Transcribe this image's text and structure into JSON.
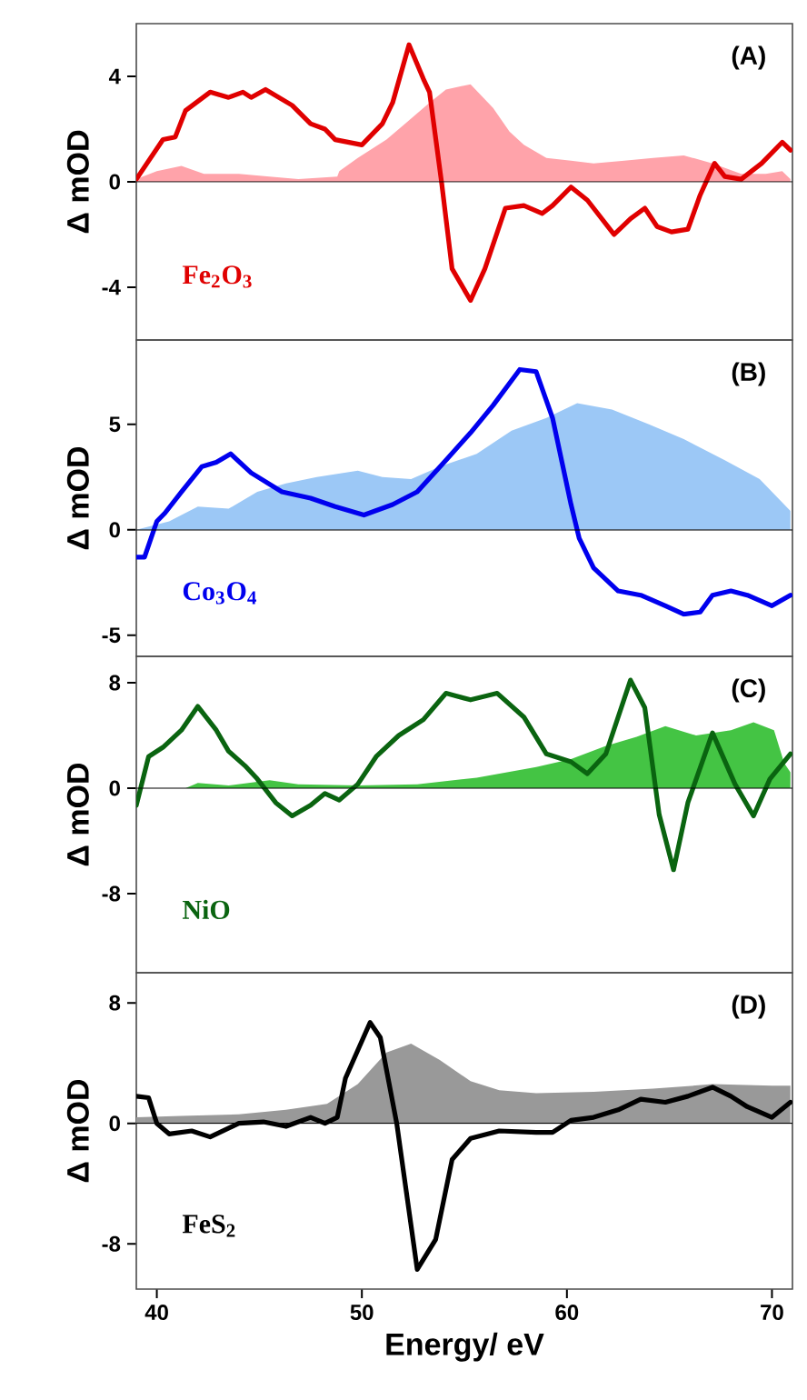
{
  "chart_data": [
    {
      "type": "line",
      "ylabel": "Δ mOD",
      "xlim": [
        39,
        71
      ],
      "ylim": [
        -6,
        6
      ],
      "yticks": [
        -4,
        0,
        4
      ],
      "tick_labels": "y",
      "annotations": [
        "(A)"
      ],
      "ref_lines": [
        {
          "axis": "y",
          "value": 0,
          "color": "#000000"
        }
      ],
      "series": [
        {
          "type": "area",
          "color": "#ffa3aa",
          "x": [
            39,
            40,
            41.2,
            42.3,
            44.0,
            45.5,
            46.9,
            48.8,
            48.9,
            49.8,
            51.2,
            52.1,
            53.3,
            54.1,
            55.3,
            56.4,
            57.2,
            57.9,
            59.0,
            60.2,
            61.3,
            62.8,
            64.2,
            65.7,
            67.1,
            68.5,
            69.7,
            70.5,
            70.9
          ],
          "values": [
            0.1,
            0.4,
            0.6,
            0.3,
            0.3,
            0.2,
            0.1,
            0.2,
            0.4,
            0.9,
            1.6,
            2.2,
            3.0,
            3.5,
            3.7,
            2.8,
            1.9,
            1.4,
            0.9,
            0.8,
            0.7,
            0.8,
            0.9,
            1.0,
            0.7,
            0.3,
            0.3,
            0.4,
            0.1
          ]
        },
        {
          "name": "Fe$_{2}$O$_{3}$",
          "color": "#e00000",
          "x": [
            39,
            40.3,
            40.9,
            41.4,
            42.6,
            43.5,
            44.2,
            44.6,
            45.3,
            46.6,
            47.5,
            48.2,
            48.7,
            50.0,
            51.0,
            51.5,
            52.3,
            53.0,
            53.3,
            53.9,
            54.4,
            55.3,
            56.0,
            57.0,
            57.9,
            58.8,
            59.3,
            60.2,
            61.0,
            62.3,
            63.1,
            63.8,
            64.4,
            65.1,
            65.9,
            66.5,
            67.2,
            67.7,
            68.5,
            69.5,
            70.5,
            70.9
          ],
          "values": [
            0.1,
            1.6,
            1.7,
            2.7,
            3.4,
            3.2,
            3.4,
            3.2,
            3.5,
            2.9,
            2.2,
            2.0,
            1.6,
            1.4,
            2.2,
            3.0,
            5.2,
            3.9,
            3.4,
            -0.1,
            -3.3,
            -4.5,
            -3.3,
            -1.0,
            -0.9,
            -1.2,
            -0.9,
            -0.2,
            -0.7,
            -2.0,
            -1.4,
            -1.0,
            -1.7,
            -1.9,
            -1.8,
            -0.5,
            0.7,
            0.2,
            0.1,
            0.7,
            1.5,
            1.2
          ]
        }
      ]
    },
    {
      "type": "line",
      "ylabel": "Δ mOD",
      "xlim": [
        39,
        71
      ],
      "ylim": [
        -6,
        9
      ],
      "yticks": [
        -5,
        0,
        5
      ],
      "tick_labels": "y",
      "annotations": [
        "(B)"
      ],
      "ref_lines": [
        {
          "axis": "y",
          "value": 0,
          "color": "#000000"
        }
      ],
      "series": [
        {
          "type": "area",
          "color": "#9cc8f6",
          "x": [
            39,
            40.6,
            42.0,
            43.5,
            44.9,
            46.3,
            47.8,
            49.8,
            51.0,
            52.4,
            53.8,
            55.6,
            57.3,
            59.0,
            60.5,
            62.2,
            64.0,
            65.7,
            67.7,
            69.4,
            70.6,
            70.9
          ],
          "values": [
            0,
            0.4,
            1.1,
            1.0,
            1.8,
            2.2,
            2.5,
            2.8,
            2.5,
            2.4,
            3.0,
            3.6,
            4.7,
            5.3,
            6.0,
            5.7,
            5.0,
            4.3,
            3.3,
            2.4,
            1.2,
            0.9
          ]
        },
        {
          "name": "Co$_{3}$O$_{4}$",
          "color": "#0000ee",
          "x": [
            39,
            39.4,
            40,
            40.4,
            41.2,
            42.2,
            42.9,
            43.6,
            44.6,
            46.1,
            47.5,
            48.7,
            50.1,
            51.5,
            52.7,
            54.1,
            55.3,
            56.4,
            57.7,
            58.5,
            59.3,
            60.2,
            60.6,
            61.3,
            62.5,
            63.6,
            64.8,
            65.7,
            66.5,
            67.1,
            68.0,
            68.8,
            70.0,
            70.9
          ],
          "values": [
            -1.3,
            -1.3,
            0.4,
            0.8,
            1.8,
            3.0,
            3.2,
            3.6,
            2.7,
            1.8,
            1.5,
            1.1,
            0.7,
            1.2,
            1.8,
            3.3,
            4.6,
            5.9,
            7.6,
            7.5,
            5.3,
            1.2,
            -0.4,
            -1.8,
            -2.9,
            -3.1,
            -3.6,
            -4.0,
            -3.9,
            -3.1,
            -2.9,
            -3.1,
            -3.6,
            -3.1
          ]
        }
      ]
    },
    {
      "type": "line",
      "ylabel": "Δ mOD",
      "xlim": [
        39,
        71
      ],
      "ylim": [
        -14,
        10
      ],
      "yticks": [
        -8,
        0,
        8
      ],
      "tick_labels": "y",
      "annotations": [
        "(C)"
      ],
      "ref_lines": [
        {
          "axis": "y",
          "value": 0,
          "color": "#000000"
        }
      ],
      "series": [
        {
          "type": "area",
          "color": "#44c444",
          "x": [
            41.4,
            42.0,
            43.5,
            45.5,
            46.9,
            49.8,
            52.7,
            55.6,
            58.5,
            60.2,
            61.9,
            63.4,
            64.8,
            66.3,
            68.0,
            69.1,
            70.1,
            70.6,
            70.9
          ],
          "values": [
            0,
            0.4,
            0.2,
            0.6,
            0.3,
            0.2,
            0.3,
            0.8,
            1.6,
            2.2,
            3.2,
            3.9,
            4.7,
            4.0,
            4.4,
            5.0,
            4.4,
            1.9,
            1.2
          ]
        },
        {
          "name": "NiO",
          "color": "#0a6410",
          "x": [
            39,
            39.6,
            40.3,
            41.2,
            42.0,
            42.9,
            43.5,
            44.3,
            44.9,
            45.8,
            46.6,
            47.5,
            48.2,
            48.9,
            49.8,
            50.7,
            51.8,
            53.0,
            54.1,
            55.3,
            56.6,
            57.9,
            59.0,
            60.2,
            61.0,
            61.9,
            63.1,
            63.8,
            64.5,
            65.2,
            65.9,
            67.1,
            68.2,
            69.1,
            69.9,
            70.9
          ],
          "values": [
            -1.3,
            2.4,
            3.1,
            4.4,
            6.2,
            4.4,
            2.8,
            1.7,
            0.7,
            -1.1,
            -2.1,
            -1.3,
            -0.4,
            -0.9,
            0.3,
            2.4,
            4.0,
            5.2,
            7.2,
            6.7,
            7.2,
            5.4,
            2.6,
            2.0,
            1.1,
            2.6,
            8.2,
            6.1,
            -2.0,
            -6.2,
            -1.1,
            4.2,
            0.3,
            -2.1,
            0.7,
            2.6
          ]
        }
      ]
    },
    {
      "type": "line",
      "xlabel": "Energy/ eV",
      "ylabel": "Δ mOD",
      "xlim": [
        39,
        71
      ],
      "ylim": [
        -11,
        10
      ],
      "xticks": [
        40,
        50,
        60,
        70
      ],
      "yticks": [
        -8,
        0,
        8
      ],
      "annotations": [
        "(D)"
      ],
      "ref_lines": [
        {
          "axis": "y",
          "value": 0,
          "color": "#000000"
        }
      ],
      "series": [
        {
          "type": "area",
          "color": "#999999",
          "x": [
            39,
            41.2,
            44.0,
            46.3,
            48.3,
            49.8,
            51.2,
            52.4,
            53.8,
            55.3,
            56.7,
            58.5,
            61.3,
            64.2,
            67.1,
            70.0,
            70.9
          ],
          "values": [
            0.4,
            0.5,
            0.6,
            0.9,
            1.3,
            2.6,
            4.7,
            5.3,
            4.2,
            2.8,
            2.2,
            2.0,
            2.1,
            2.3,
            2.6,
            2.5,
            2.5
          ]
        },
        {
          "name": "FeS$_{2}$",
          "color": "#000000",
          "x": [
            39,
            39.6,
            40.0,
            40.6,
            41.7,
            42.6,
            44.0,
            45.2,
            46.3,
            47.5,
            48.2,
            48.8,
            49.2,
            50.4,
            50.9,
            51.7,
            52.7,
            53.6,
            54.4,
            55.3,
            56.7,
            58.5,
            59.3,
            60.2,
            61.3,
            62.5,
            63.6,
            64.8,
            65.9,
            67.1,
            68.0,
            68.8,
            70.0,
            70.9
          ],
          "values": [
            1.8,
            1.7,
            0,
            -0.7,
            -0.5,
            -0.9,
            0,
            0.1,
            -0.2,
            0.4,
            0,
            0.4,
            3.0,
            6.7,
            5.7,
            0,
            -9.7,
            -7.7,
            -2.4,
            -1.0,
            -0.5,
            -0.6,
            -0.6,
            0.2,
            0.4,
            0.9,
            1.6,
            1.4,
            1.8,
            2.4,
            1.8,
            1.1,
            0.4,
            1.4
          ]
        }
      ]
    }
  ]
}
